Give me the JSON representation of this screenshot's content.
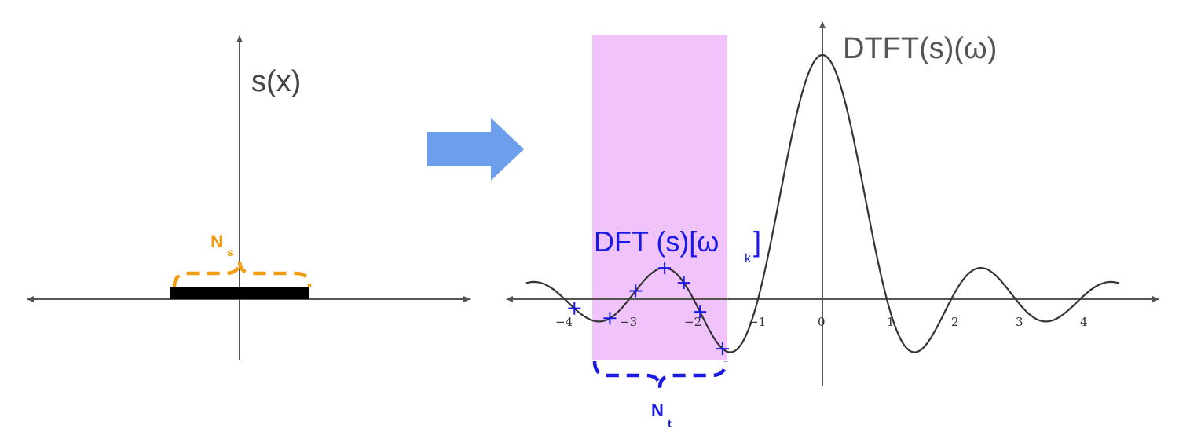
{
  "left_panel": {
    "axis_label": "s(x)",
    "width_label_main": "N",
    "width_label_sub": "s",
    "colors": {
      "axis": "#555555",
      "pulse": "#000000",
      "brace": "#f39c12",
      "label": "#444444"
    }
  },
  "arrow": {
    "color": "#6d9eeb",
    "direction": "right"
  },
  "right_panel": {
    "axis_label": "DTFT(s)(ω)",
    "dft_label_main": "DFT (s)[ω",
    "dft_label_sub": "k",
    "dft_label_end": "]",
    "window_label_main": "N",
    "window_label_sub": "t",
    "colors": {
      "axis": "#555555",
      "curve": "#333333",
      "window": "#f0c3fb",
      "dft": "#1a1ae6",
      "brace": "#1a1ae6",
      "label": "#555555"
    },
    "x_ticks": [
      "-4",
      "-3",
      "-2",
      "-1",
      "0",
      "1",
      "2",
      "3",
      "4"
    ],
    "window_range": [
      -3.9,
      -1.5
    ]
  },
  "chart_data": {
    "type": "line",
    "title": "",
    "xlabel": "",
    "ylabel": "DTFT(s)(ω)",
    "function": "sinc",
    "xlim": [
      -4.9,
      4.9
    ],
    "series": [
      {
        "name": "DTFT(s)(ω)",
        "x": [
          -4.6,
          -4.5,
          -4.0,
          -3.5,
          -3.0,
          -2.5,
          -2.0,
          -1.5,
          -1.0,
          -0.5,
          0.0,
          0.5,
          1.0,
          1.5,
          2.0,
          2.5,
          3.0,
          3.5,
          4.0,
          4.5,
          4.6
        ],
        "y": [
          0.085,
          0.07,
          0.0,
          -0.09,
          0.0,
          0.127,
          0.0,
          -0.212,
          0.0,
          0.637,
          1.0,
          0.637,
          0.0,
          -0.212,
          0.0,
          0.127,
          0.0,
          -0.09,
          0.0,
          0.07,
          0.085
        ]
      },
      {
        "name": "DFT (s)[ω_k]",
        "x": [
          -3.85,
          -3.3,
          -2.9,
          -2.45,
          -2.15,
          -1.9,
          -1.55
        ],
        "y": [
          -0.082,
          0.0,
          0.114,
          0.125,
          0.025,
          -0.097,
          -0.205
        ]
      }
    ]
  }
}
